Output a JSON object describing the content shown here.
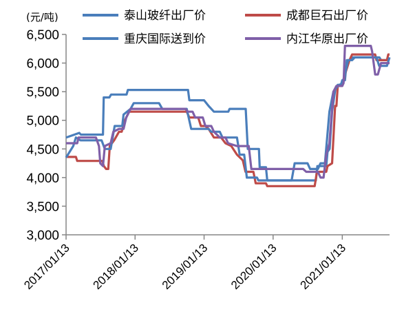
{
  "chart_data": {
    "type": "line",
    "unit_label": "(元/吨)",
    "x_tick_labels": [
      "2017/01/13",
      "2018/01/13",
      "2019/01/13",
      "2020/01/13",
      "2021/01/13"
    ],
    "x_domain": [
      "2017-01-13",
      "2021-09-20"
    ],
    "ylim": [
      3000,
      6500
    ],
    "y_ticks": [
      3000,
      3500,
      4000,
      4500,
      5000,
      5500,
      6000,
      6500
    ],
    "y_tick_labels": [
      "3,000",
      "3,500",
      "4,000",
      "4,500",
      "5,000",
      "5,500",
      "6,000",
      "6,500"
    ],
    "legend_position": "top",
    "series": [
      {
        "name": "泰山玻纤出厂价",
        "color": "#4a7ebb",
        "points": [
          [
            "2017-01-13",
            4700
          ],
          [
            "2017-03-24",
            4780
          ],
          [
            "2017-04-01",
            4750
          ],
          [
            "2017-07-27",
            4750
          ],
          [
            "2017-07-31",
            5400
          ],
          [
            "2017-08-30",
            5400
          ],
          [
            "2017-09-08",
            5450
          ],
          [
            "2017-11-29",
            5450
          ],
          [
            "2017-12-06",
            5530
          ],
          [
            "2018-10-20",
            5530
          ],
          [
            "2018-10-27",
            5350
          ],
          [
            "2019-01-13",
            5350
          ],
          [
            "2019-02-06",
            5250
          ],
          [
            "2019-03-06",
            5150
          ],
          [
            "2019-05-21",
            5150
          ],
          [
            "2019-05-28",
            5200
          ],
          [
            "2019-08-21",
            5200
          ],
          [
            "2019-09-01",
            4500
          ],
          [
            "2019-10-30",
            4500
          ],
          [
            "2019-11-03",
            4180
          ],
          [
            "2019-12-06",
            4180
          ],
          [
            "2019-12-13",
            3950
          ],
          [
            "2020-08-26",
            3950
          ],
          [
            "2020-09-03",
            4200
          ],
          [
            "2020-10-20",
            4200
          ],
          [
            "2020-10-27",
            4450
          ],
          [
            "2020-11-07",
            4500
          ],
          [
            "2020-11-20",
            5150
          ],
          [
            "2020-12-07",
            5550
          ],
          [
            "2020-12-20",
            5620
          ],
          [
            "2021-01-06",
            5620
          ],
          [
            "2021-01-13",
            5700
          ],
          [
            "2021-01-27",
            5700
          ],
          [
            "2021-02-06",
            6050
          ],
          [
            "2021-02-24",
            6050
          ],
          [
            "2021-03-03",
            6100
          ],
          [
            "2021-07-28",
            6100
          ],
          [
            "2021-08-06",
            6050
          ],
          [
            "2021-09-20",
            6050
          ]
        ]
      },
      {
        "name": "成都巨石出厂价",
        "color": "#be4b48",
        "points": [
          [
            "2017-01-13",
            4360
          ],
          [
            "2017-03-06",
            4360
          ],
          [
            "2017-03-13",
            4290
          ],
          [
            "2017-07-24",
            4290
          ],
          [
            "2017-08-01",
            4200
          ],
          [
            "2017-08-13",
            4150
          ],
          [
            "2017-08-24",
            4150
          ],
          [
            "2017-09-01",
            4550
          ],
          [
            "2017-09-24",
            4650
          ],
          [
            "2017-10-20",
            4800
          ],
          [
            "2017-11-03",
            4800
          ],
          [
            "2017-11-20",
            5000
          ],
          [
            "2017-12-13",
            5150
          ],
          [
            "2018-10-13",
            5150
          ],
          [
            "2018-10-27",
            5050
          ],
          [
            "2018-12-13",
            5050
          ],
          [
            "2018-12-27",
            4900
          ],
          [
            "2019-01-20",
            4900
          ],
          [
            "2019-02-06",
            4850
          ],
          [
            "2019-03-06",
            4700
          ],
          [
            "2019-04-13",
            4700
          ],
          [
            "2019-05-06",
            4600
          ],
          [
            "2019-06-06",
            4550
          ],
          [
            "2019-07-06",
            4400
          ],
          [
            "2019-08-06",
            4300
          ],
          [
            "2019-08-20",
            4100
          ],
          [
            "2019-10-01",
            4100
          ],
          [
            "2019-10-13",
            3900
          ],
          [
            "2019-12-06",
            3900
          ],
          [
            "2019-12-13",
            3850
          ],
          [
            "2020-08-20",
            3850
          ],
          [
            "2020-09-01",
            4100
          ],
          [
            "2020-10-20",
            4100
          ],
          [
            "2020-10-27",
            4200
          ],
          [
            "2020-11-20",
            4250
          ],
          [
            "2020-12-06",
            5250
          ],
          [
            "2020-12-13",
            5250
          ],
          [
            "2020-12-20",
            5600
          ],
          [
            "2021-01-13",
            5600
          ],
          [
            "2021-01-27",
            5800
          ],
          [
            "2021-02-20",
            6050
          ],
          [
            "2021-03-06",
            6150
          ],
          [
            "2021-07-06",
            6150
          ],
          [
            "2021-07-13",
            6050
          ],
          [
            "2021-09-06",
            6050
          ],
          [
            "2021-09-13",
            6150
          ],
          [
            "2021-09-20",
            6150
          ]
        ]
      },
      {
        "name": "重庆国际送到价",
        "color": "#4a7ebb",
        "points": [
          [
            "2017-01-13",
            4350
          ],
          [
            "2017-02-20",
            4550
          ],
          [
            "2017-03-06",
            4700
          ],
          [
            "2017-03-30",
            4650
          ],
          [
            "2017-07-20",
            4650
          ],
          [
            "2017-08-06",
            4500
          ],
          [
            "2017-09-06",
            4500
          ],
          [
            "2017-09-27",
            4900
          ],
          [
            "2017-11-06",
            4900
          ],
          [
            "2017-11-13",
            5100
          ],
          [
            "2017-12-20",
            5200
          ],
          [
            "2018-01-06",
            5300
          ],
          [
            "2018-05-20",
            5300
          ],
          [
            "2018-06-06",
            5200
          ],
          [
            "2018-10-13",
            5200
          ],
          [
            "2018-11-06",
            4850
          ],
          [
            "2019-02-06",
            4850
          ],
          [
            "2019-02-20",
            4800
          ],
          [
            "2019-04-06",
            4800
          ],
          [
            "2019-04-20",
            4700
          ],
          [
            "2019-07-06",
            4700
          ],
          [
            "2019-07-20",
            4400
          ],
          [
            "2019-08-13",
            4400
          ],
          [
            "2019-08-27",
            4000
          ],
          [
            "2019-10-20",
            4000
          ],
          [
            "2019-10-27",
            3950
          ],
          [
            "2020-04-20",
            3950
          ],
          [
            "2020-05-06",
            4250
          ],
          [
            "2020-07-13",
            4250
          ],
          [
            "2020-07-27",
            4150
          ],
          [
            "2020-09-06",
            4150
          ],
          [
            "2020-09-20",
            4250
          ],
          [
            "2020-10-13",
            4250
          ],
          [
            "2020-11-06",
            5150
          ],
          [
            "2020-11-27",
            5500
          ],
          [
            "2020-12-20",
            5600
          ],
          [
            "2021-01-13",
            5650
          ],
          [
            "2021-01-27",
            5800
          ],
          [
            "2021-02-13",
            6050
          ],
          [
            "2021-03-06",
            6050
          ],
          [
            "2021-03-20",
            6100
          ],
          [
            "2021-07-13",
            6100
          ],
          [
            "2021-07-27",
            5950
          ],
          [
            "2021-09-06",
            5950
          ],
          [
            "2021-09-20",
            6100
          ]
        ]
      },
      {
        "name": "内江华原出厂价",
        "color": "#7f5fa8",
        "points": [
          [
            "2017-01-13",
            4600
          ],
          [
            "2017-03-13",
            4600
          ],
          [
            "2017-03-20",
            4700
          ],
          [
            "2017-06-20",
            4700
          ],
          [
            "2017-07-06",
            4550
          ],
          [
            "2017-07-13",
            4250
          ],
          [
            "2017-07-27",
            4200
          ],
          [
            "2017-08-06",
            4550
          ],
          [
            "2017-09-06",
            4600
          ],
          [
            "2017-09-20",
            4800
          ],
          [
            "2017-10-20",
            4850
          ],
          [
            "2017-11-13",
            4850
          ],
          [
            "2017-11-27",
            5050
          ],
          [
            "2017-12-20",
            5200
          ],
          [
            "2018-10-06",
            5200
          ],
          [
            "2018-10-20",
            5150
          ],
          [
            "2018-11-13",
            5150
          ],
          [
            "2018-11-27",
            5050
          ],
          [
            "2019-01-06",
            5050
          ],
          [
            "2019-01-20",
            4900
          ],
          [
            "2019-02-20",
            4900
          ],
          [
            "2019-03-06",
            4800
          ],
          [
            "2019-04-06",
            4700
          ],
          [
            "2019-05-06",
            4700
          ],
          [
            "2019-05-20",
            4600
          ],
          [
            "2019-07-06",
            4550
          ],
          [
            "2019-09-06",
            4550
          ],
          [
            "2019-09-20",
            4150
          ],
          [
            "2020-06-20",
            4150
          ],
          [
            "2020-07-06",
            4100
          ],
          [
            "2020-09-06",
            4100
          ],
          [
            "2020-09-20",
            4000
          ],
          [
            "2020-10-06",
            4000
          ],
          [
            "2020-10-20",
            4400
          ],
          [
            "2020-11-06",
            4600
          ],
          [
            "2020-11-20",
            5200
          ],
          [
            "2020-11-27",
            5500
          ],
          [
            "2020-12-13",
            5600
          ],
          [
            "2021-01-13",
            5600
          ],
          [
            "2021-01-20",
            5650
          ],
          [
            "2021-01-27",
            6300
          ],
          [
            "2021-06-13",
            6300
          ],
          [
            "2021-06-20",
            6200
          ],
          [
            "2021-07-06",
            5800
          ],
          [
            "2021-07-20",
            5800
          ],
          [
            "2021-08-06",
            6000
          ],
          [
            "2021-09-20",
            6000
          ]
        ]
      }
    ]
  }
}
